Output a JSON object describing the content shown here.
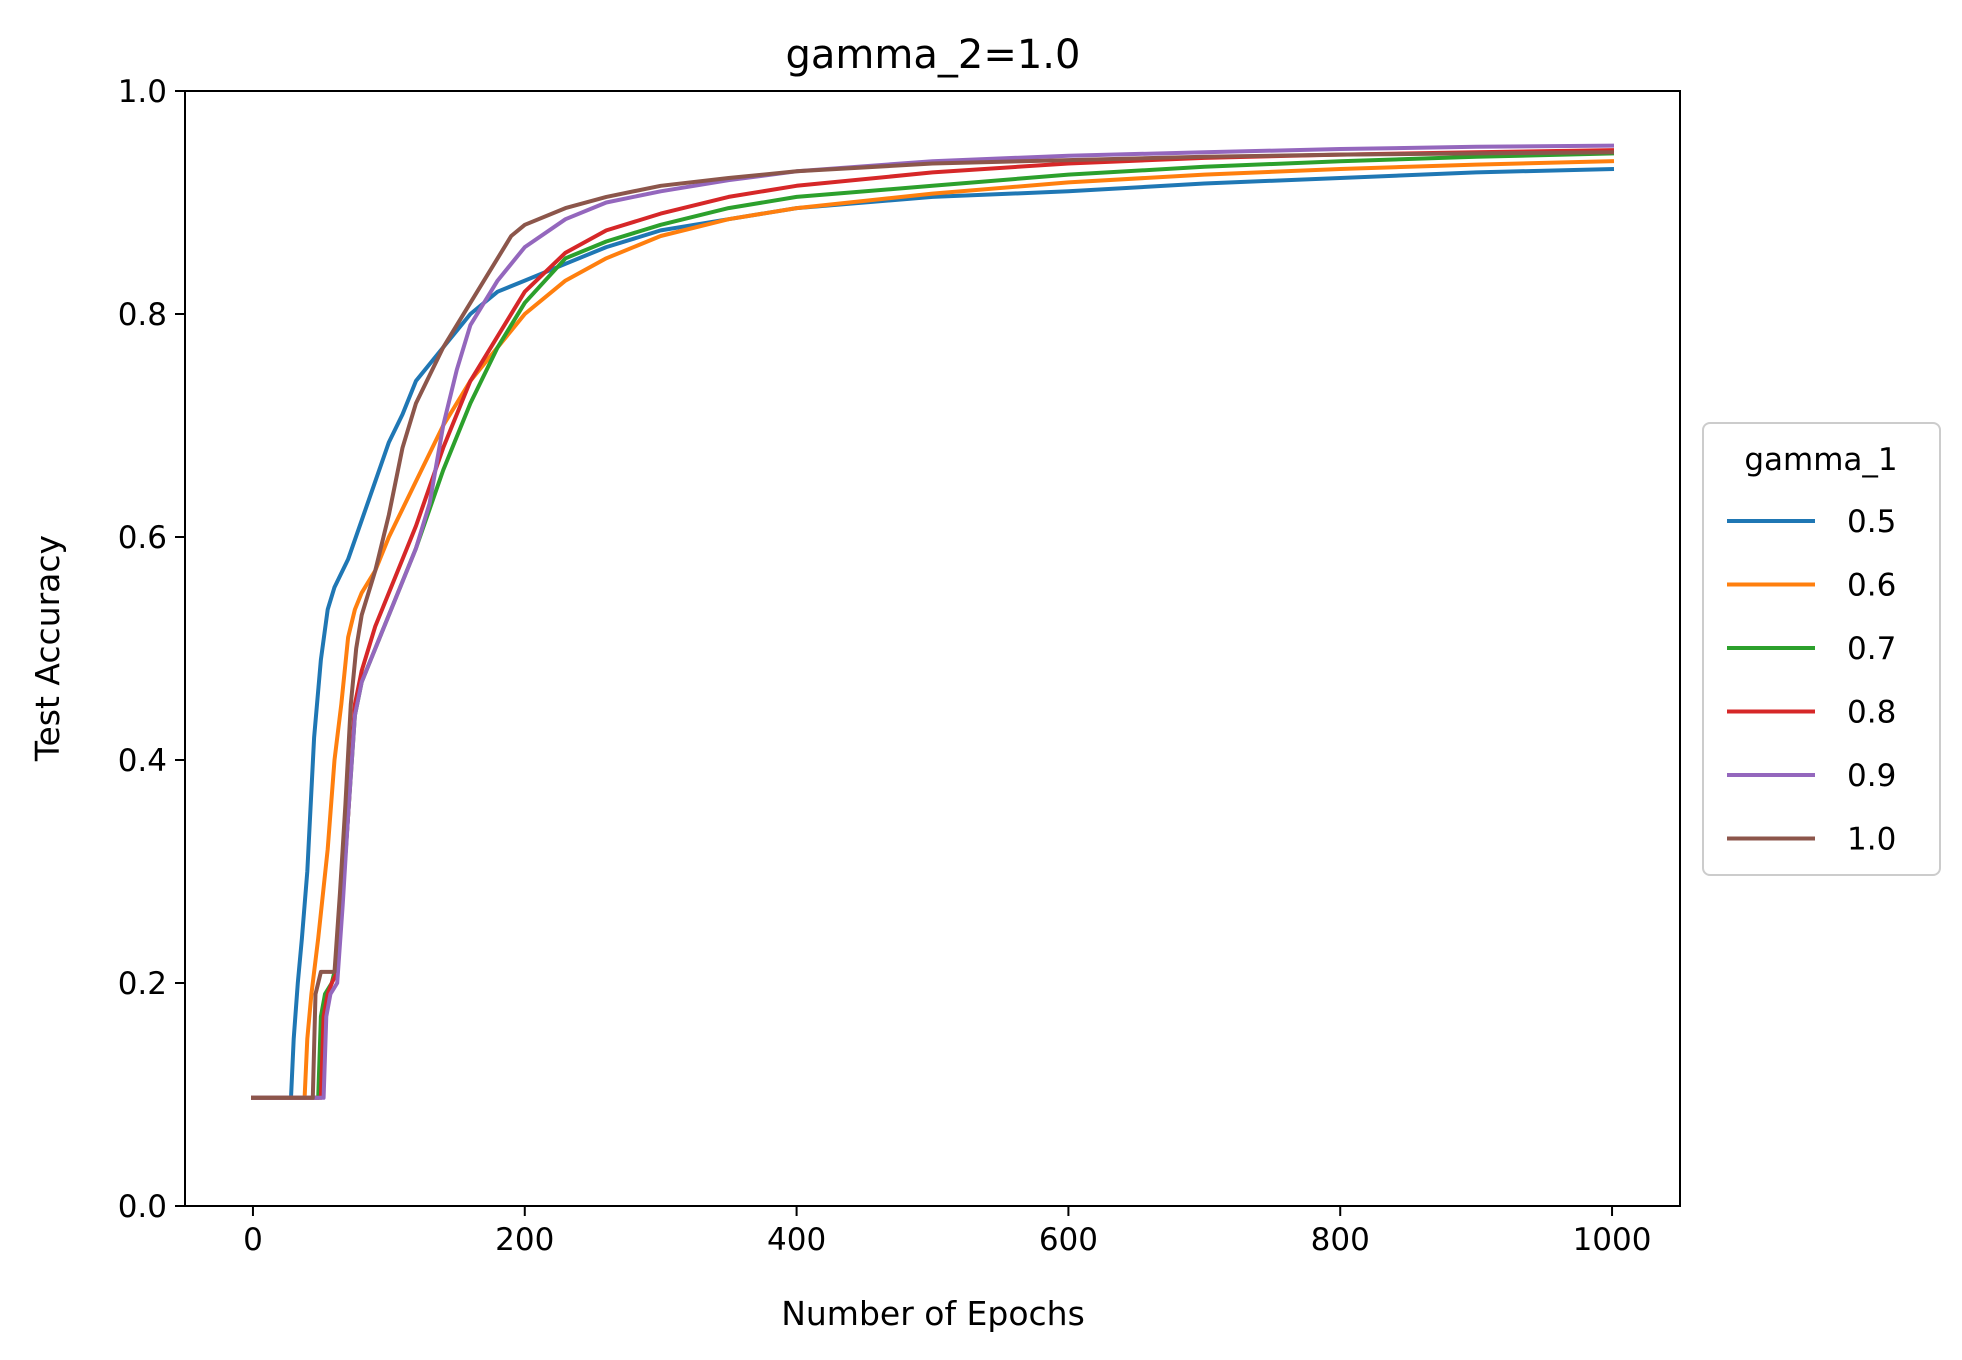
{
  "chart_data": {
    "type": "line",
    "title": "gamma_2=1.0",
    "xlabel": "Number of Epochs",
    "ylabel": "Test Accuracy",
    "xlim": [
      -50,
      1050
    ],
    "ylim": [
      0.0,
      1.0
    ],
    "xticks": [
      0,
      200,
      400,
      600,
      800,
      1000
    ],
    "xtick_labels": [
      "0",
      "200",
      "400",
      "600",
      "800",
      "1000"
    ],
    "yticks": [
      0.0,
      0.2,
      0.4,
      0.6,
      0.8,
      1.0
    ],
    "ytick_labels": [
      "0.0",
      "0.2",
      "0.4",
      "0.6",
      "0.8",
      "1.0"
    ],
    "grid": false,
    "legend": {
      "title": "gamma_1",
      "placement": "right, outside plot, vertically centered"
    },
    "series": [
      {
        "name": "0.5",
        "color": "#1f77b4",
        "x": [
          0,
          28,
          30,
          33,
          36,
          40,
          45,
          50,
          55,
          60,
          70,
          80,
          90,
          100,
          110,
          120,
          140,
          160,
          180,
          200,
          230,
          260,
          300,
          350,
          400,
          500,
          600,
          700,
          800,
          900,
          1000
        ],
        "y": [
          0.097,
          0.097,
          0.15,
          0.2,
          0.24,
          0.3,
          0.42,
          0.49,
          0.535,
          0.555,
          0.58,
          0.615,
          0.65,
          0.685,
          0.71,
          0.74,
          0.77,
          0.8,
          0.82,
          0.83,
          0.845,
          0.86,
          0.875,
          0.885,
          0.895,
          0.905,
          0.91,
          0.917,
          0.922,
          0.927,
          0.93
        ]
      },
      {
        "name": "0.6",
        "color": "#ff7f0e",
        "x": [
          0,
          38,
          40,
          43,
          48,
          55,
          60,
          65,
          70,
          75,
          80,
          90,
          100,
          120,
          140,
          160,
          180,
          200,
          230,
          260,
          300,
          350,
          400,
          500,
          600,
          700,
          800,
          900,
          1000
        ],
        "y": [
          0.097,
          0.097,
          0.15,
          0.19,
          0.24,
          0.32,
          0.4,
          0.45,
          0.51,
          0.535,
          0.55,
          0.57,
          0.6,
          0.65,
          0.7,
          0.74,
          0.77,
          0.8,
          0.83,
          0.85,
          0.87,
          0.885,
          0.895,
          0.908,
          0.918,
          0.925,
          0.93,
          0.934,
          0.937
        ]
      },
      {
        "name": "0.7",
        "color": "#2ca02c",
        "x": [
          0,
          48,
          50,
          53,
          58,
          62,
          66,
          70,
          75,
          80,
          90,
          100,
          120,
          140,
          160,
          180,
          200,
          230,
          260,
          300,
          350,
          400,
          500,
          600,
          700,
          800,
          900,
          1000
        ],
        "y": [
          0.097,
          0.097,
          0.17,
          0.19,
          0.2,
          0.22,
          0.28,
          0.35,
          0.44,
          0.47,
          0.5,
          0.53,
          0.59,
          0.66,
          0.72,
          0.77,
          0.81,
          0.85,
          0.865,
          0.88,
          0.895,
          0.905,
          0.915,
          0.925,
          0.932,
          0.937,
          0.941,
          0.944
        ]
      },
      {
        "name": "0.8",
        "color": "#d62728",
        "x": [
          0,
          50,
          52,
          55,
          58,
          62,
          66,
          70,
          75,
          80,
          90,
          100,
          110,
          120,
          140,
          160,
          180,
          200,
          230,
          260,
          300,
          350,
          400,
          500,
          600,
          700,
          800,
          900,
          1000
        ],
        "y": [
          0.097,
          0.097,
          0.17,
          0.19,
          0.2,
          0.21,
          0.28,
          0.35,
          0.45,
          0.48,
          0.52,
          0.55,
          0.58,
          0.61,
          0.68,
          0.74,
          0.78,
          0.82,
          0.855,
          0.875,
          0.89,
          0.905,
          0.915,
          0.927,
          0.935,
          0.94,
          0.943,
          0.945,
          0.947
        ]
      },
      {
        "name": "0.9",
        "color": "#9467bd",
        "x": [
          0,
          52,
          54,
          57,
          62,
          66,
          70,
          75,
          80,
          90,
          100,
          110,
          120,
          130,
          140,
          150,
          160,
          180,
          200,
          230,
          260,
          300,
          350,
          400,
          500,
          600,
          700,
          800,
          900,
          1000
        ],
        "y": [
          0.097,
          0.097,
          0.17,
          0.19,
          0.2,
          0.27,
          0.35,
          0.44,
          0.47,
          0.5,
          0.53,
          0.56,
          0.59,
          0.63,
          0.7,
          0.75,
          0.79,
          0.83,
          0.86,
          0.885,
          0.9,
          0.91,
          0.92,
          0.928,
          0.937,
          0.942,
          0.945,
          0.948,
          0.95,
          0.951
        ]
      },
      {
        "name": "1.0",
        "color": "#8c564b",
        "x": [
          0,
          44,
          46,
          50,
          55,
          60,
          64,
          68,
          72,
          76,
          80,
          90,
          100,
          110,
          120,
          140,
          160,
          180,
          190,
          200,
          230,
          260,
          300,
          350,
          400,
          500,
          600,
          700,
          800,
          900,
          1000
        ],
        "y": [
          0.097,
          0.097,
          0.19,
          0.21,
          0.21,
          0.21,
          0.28,
          0.36,
          0.45,
          0.5,
          0.53,
          0.57,
          0.62,
          0.68,
          0.72,
          0.77,
          0.81,
          0.85,
          0.87,
          0.88,
          0.895,
          0.905,
          0.915,
          0.922,
          0.928,
          0.935,
          0.938,
          0.941,
          0.943,
          0.944,
          0.945
        ]
      }
    ]
  }
}
